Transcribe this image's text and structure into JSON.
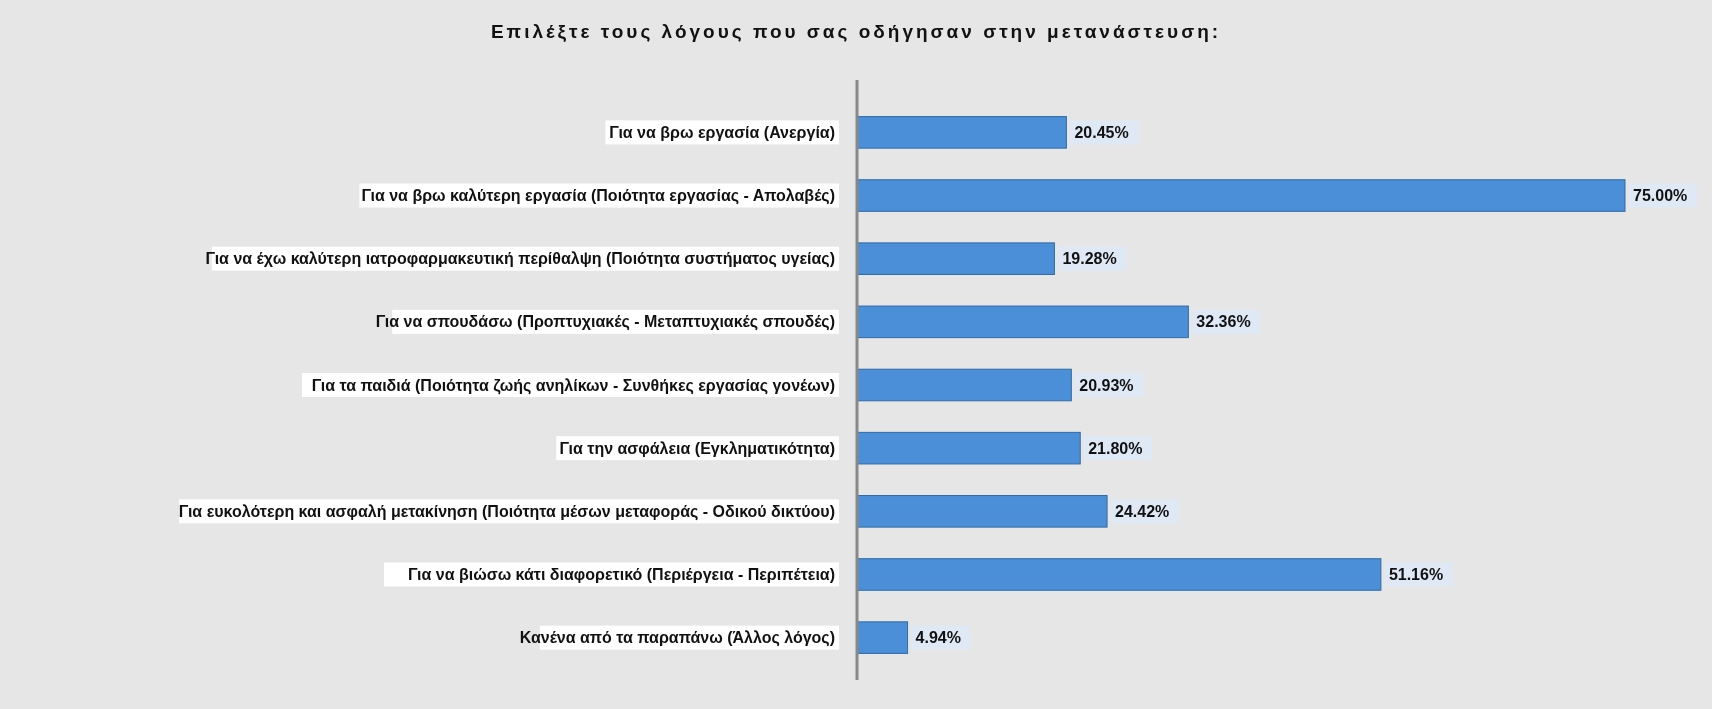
{
  "chart_data": {
    "type": "bar",
    "orientation": "horizontal",
    "title": "Επιλέξτε τους λόγους που σας οδήγησαν στην μετανάστευση:",
    "categories": [
      "Για να βρω εργασία (Ανεργία)",
      "Για να βρω καλύτερη εργασία (Ποιότητα εργασίας - Απολαβές)",
      "Για να έχω καλύτερη ιατροφαρμακευτική περίθαλψη (Ποιότητα συστήματος υγείας)",
      "Για να σπουδάσω (Προπτυχιακές - Μεταπτυχιακές σπουδές)",
      "Για τα παιδιά (Ποιότητα ζωής ανηλίκων - Συνθήκες εργασίας γονέων)",
      "Για την ασφάλεια (Εγκληματικότητα)",
      "Για ευκολότερη και ασφαλή μετακίνηση (Ποιότητα μέσων μεταφοράς - Οδικού δικτύου)",
      "Για να βιώσω κάτι διαφορετικό (Περιέργεια - Περιπέτεια)",
      "Κανένα από τα παραπάνω (Άλλος λόγος)"
    ],
    "values": [
      20.45,
      75.0,
      19.28,
      32.36,
      20.93,
      21.8,
      24.42,
      51.16,
      4.94
    ],
    "value_labels": [
      "20.45%",
      "75.00%",
      "19.28%",
      "32.36%",
      "20.93%",
      "21.80%",
      "24.42%",
      "51.16%",
      "4.94%"
    ],
    "color": "#4a8fd8"
  }
}
